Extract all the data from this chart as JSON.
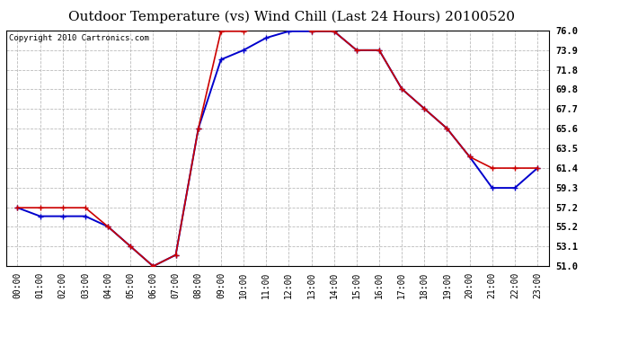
{
  "title": "Outdoor Temperature (vs) Wind Chill (Last 24 Hours) 20100520",
  "copyright": "Copyright 2010 Cartronics.com",
  "x_labels": [
    "00:00",
    "01:00",
    "02:00",
    "03:00",
    "04:00",
    "05:00",
    "06:00",
    "07:00",
    "08:00",
    "09:00",
    "10:00",
    "11:00",
    "12:00",
    "13:00",
    "14:00",
    "15:00",
    "16:00",
    "17:00",
    "18:00",
    "19:00",
    "20:00",
    "21:00",
    "22:00",
    "23:00"
  ],
  "outdoor_temp": [
    57.2,
    57.2,
    57.2,
    57.2,
    55.2,
    53.1,
    51.0,
    52.2,
    65.6,
    75.9,
    75.9,
    76.5,
    77.0,
    75.9,
    75.9,
    73.9,
    73.9,
    69.8,
    67.7,
    65.6,
    62.6,
    61.4,
    61.4,
    61.4
  ],
  "wind_chill": [
    57.2,
    56.3,
    56.3,
    56.3,
    55.2,
    53.1,
    51.0,
    52.2,
    65.6,
    72.9,
    73.9,
    75.2,
    75.9,
    75.9,
    75.9,
    73.9,
    73.9,
    69.8,
    67.7,
    65.6,
    62.6,
    59.3,
    59.3,
    61.4
  ],
  "temp_color": "#cc0000",
  "chill_color": "#0000cc",
  "ylim": [
    51.0,
    76.0
  ],
  "yticks": [
    51.0,
    53.1,
    55.2,
    57.2,
    59.3,
    61.4,
    63.5,
    65.6,
    67.7,
    69.8,
    71.8,
    73.9,
    76.0
  ],
  "bg_color": "#ffffff",
  "grid_color": "#bbbbbb",
  "title_fontsize": 11,
  "copyright_fontsize": 6.5,
  "tick_fontsize": 7,
  "ytick_fontsize": 7.5
}
